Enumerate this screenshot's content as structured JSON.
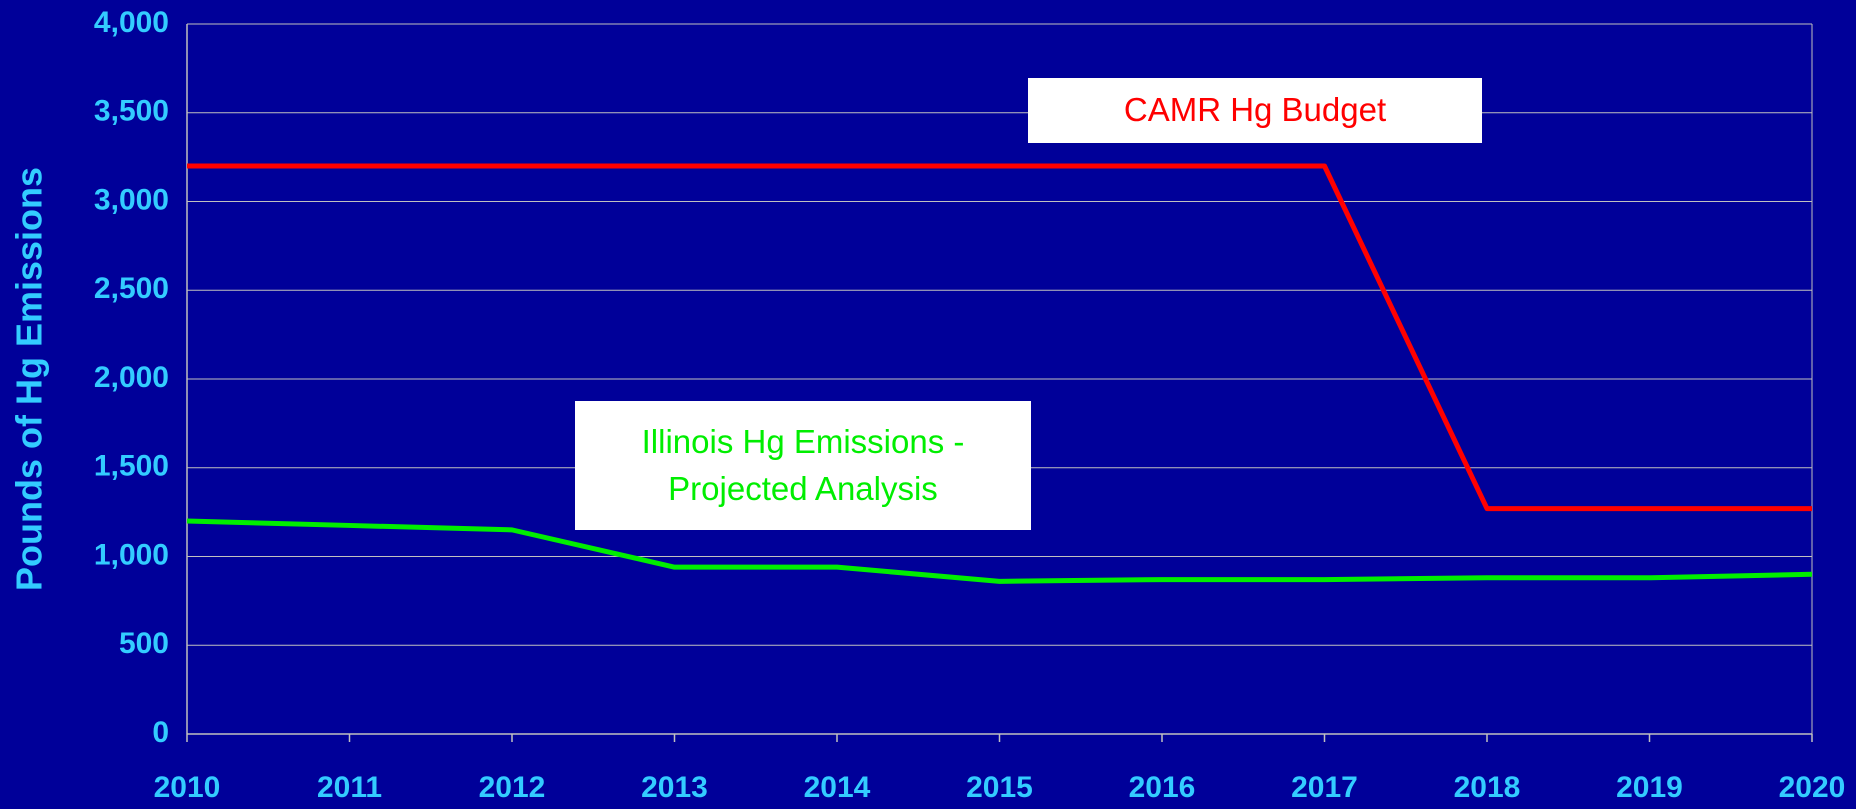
{
  "chart_data": {
    "type": "line",
    "y_axis_label": "Pounds of Hg Emissions",
    "categories": [
      "2010",
      "2011",
      "2012",
      "2013",
      "2014",
      "2015",
      "2016",
      "2017",
      "2018",
      "2019",
      "2020"
    ],
    "series": [
      {
        "name": "CAMR Hg Budget",
        "color": "#ff0000",
        "values": [
          3200,
          3200,
          3200,
          3200,
          3200,
          3200,
          3200,
          3200,
          1270,
          1270,
          1270
        ]
      },
      {
        "name": "Illinois Hg Emissions - Projected Analysis",
        "color": "#00ee00",
        "values": [
          1200,
          1175,
          1150,
          940,
          940,
          860,
          870,
          870,
          880,
          880,
          900
        ]
      }
    ],
    "ylim": [
      0,
      4000
    ],
    "yticks": [
      0,
      500,
      {
        "value": 1000,
        "label": "1,000"
      },
      {
        "value": 1500,
        "label": "1,500"
      },
      {
        "value": 2000,
        "label": "2,000"
      },
      {
        "value": 2500,
        "label": "2,500"
      },
      {
        "value": 3000,
        "label": "3,000"
      },
      {
        "value": 3500,
        "label": "3,500"
      },
      {
        "value": 4000,
        "label": "4,000"
      }
    ],
    "grid": true
  }
}
